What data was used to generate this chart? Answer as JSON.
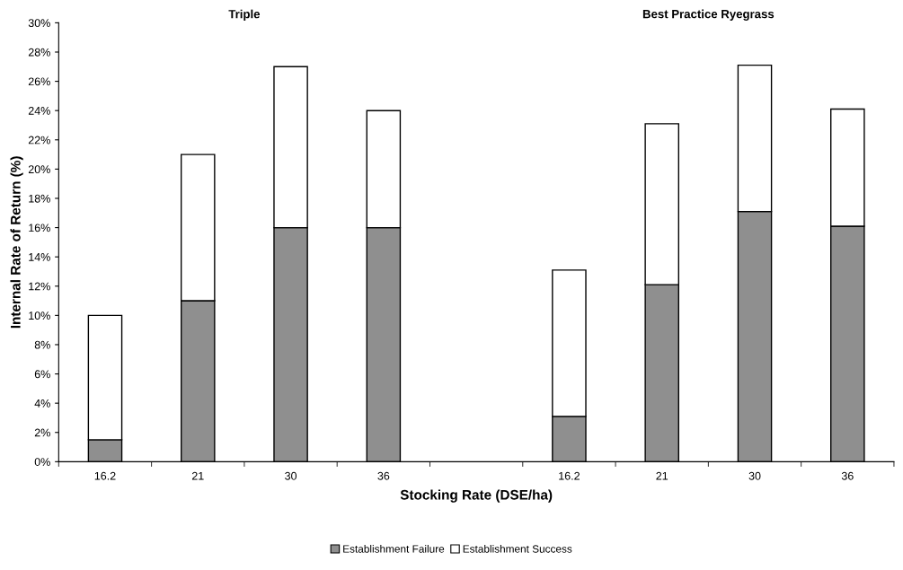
{
  "chart_data": {
    "type": "bar",
    "stacked": true,
    "xlabel": "Stocking Rate (DSE/ha)",
    "ylabel": "Internal Rate of Return (%)",
    "annotations": [
      "Triple",
      "Best Practice Ryegrass"
    ],
    "categories": [
      "16.2",
      "21",
      "30",
      "36",
      null,
      "16.2",
      "21",
      "30",
      "36"
    ],
    "series": [
      {
        "name": "Establishment Failure",
        "color": "#8f8f8f",
        "values": [
          1.5,
          11,
          16,
          16,
          null,
          3.1,
          12.1,
          17.1,
          16.1
        ]
      },
      {
        "name": "Establishment Success",
        "color": "#ffffff",
        "values": [
          8.5,
          10,
          11,
          8,
          null,
          10,
          11,
          10,
          8
        ]
      }
    ],
    "ylim": [
      0,
      30
    ],
    "yticks": [
      {
        "value": 0,
        "label": "0%"
      },
      {
        "value": 2,
        "label": "2%"
      },
      {
        "value": 4,
        "label": "4%"
      },
      {
        "value": 6,
        "label": "6%"
      },
      {
        "value": 8,
        "label": "8%"
      },
      {
        "value": 10,
        "label": "10%"
      },
      {
        "value": 12,
        "label": "12%"
      },
      {
        "value": 14,
        "label": "14%"
      },
      {
        "value": 16,
        "label": "16%"
      },
      {
        "value": 18,
        "label": "18%"
      },
      {
        "value": 20,
        "label": "20%"
      },
      {
        "value": 22,
        "label": "22%"
      },
      {
        "value": 24,
        "label": "24%"
      },
      {
        "value": 26,
        "label": "26%"
      },
      {
        "value": 28,
        "label": "28%"
      },
      {
        "value": 30,
        "label": "30%"
      }
    ],
    "legend": "bottom",
    "grid": false
  }
}
